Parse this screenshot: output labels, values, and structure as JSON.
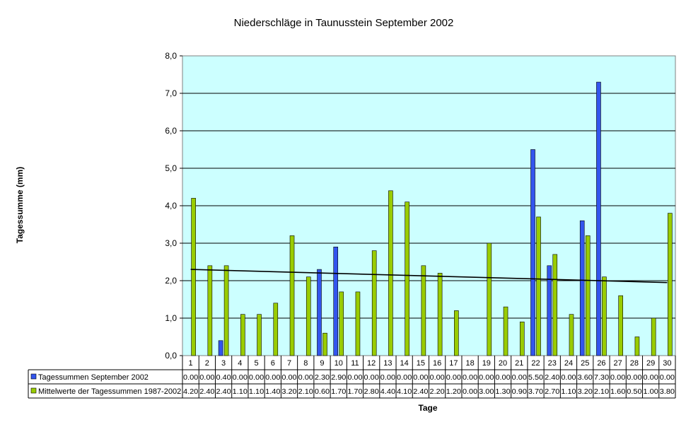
{
  "chart_data": {
    "type": "bar",
    "title": "Niederschläge in Taunusstein September 2002",
    "xlabel": "Tage",
    "ylabel": "Tagessumme (mm)",
    "ylim": [
      0,
      8
    ],
    "yticks": [
      "0,0",
      "1,0",
      "2,0",
      "3,0",
      "4,0",
      "5,0",
      "6,0",
      "7,0",
      "8,0"
    ],
    "grid": true,
    "legend": "data-table-below",
    "categories": [
      "1",
      "2",
      "3",
      "4",
      "5",
      "6",
      "7",
      "8",
      "9",
      "10",
      "11",
      "12",
      "13",
      "14",
      "15",
      "16",
      "17",
      "18",
      "19",
      "20",
      "21",
      "22",
      "23",
      "24",
      "25",
      "26",
      "27",
      "28",
      "29",
      "30"
    ],
    "series": [
      {
        "name": "Tagessummen September 2002",
        "color": "#3355ee",
        "values": [
          0.0,
          0.0,
          0.4,
          0.0,
          0.0,
          0.0,
          0.0,
          0.0,
          2.3,
          2.9,
          0.0,
          0.0,
          0.0,
          0.0,
          0.0,
          0.0,
          0.0,
          0.0,
          0.0,
          0.0,
          0.0,
          5.5,
          2.4,
          0.0,
          3.6,
          7.3,
          0.0,
          0.0,
          0.0,
          0.0
        ],
        "labels": [
          "0.00",
          "0.00",
          "0.40",
          "0.00",
          "0.00",
          "0.00",
          "0.00",
          "0.00",
          "2.30",
          "2.90",
          "0.00",
          "0.00",
          "0.00",
          "0.00",
          "0.00",
          "0.00",
          "0.00",
          "0.00",
          "0.00",
          "0.00",
          "0.00",
          "5.50",
          "2.40",
          "0.00",
          "3.60",
          "7.30",
          "0.00",
          "0.00",
          "0.00",
          "0.00"
        ]
      },
      {
        "name": "Mittelwerte der Tagessummen 1987-2002",
        "color": "#99cc00",
        "values": [
          4.2,
          2.4,
          2.4,
          1.1,
          1.1,
          1.4,
          3.2,
          2.1,
          0.6,
          1.7,
          1.7,
          2.8,
          4.4,
          4.1,
          2.4,
          2.2,
          1.2,
          0.0,
          3.0,
          1.3,
          0.9,
          3.7,
          2.7,
          1.1,
          3.2,
          2.1,
          1.6,
          0.5,
          1.0,
          3.8
        ],
        "labels": [
          "4.20",
          "2.40",
          "2.40",
          "1.10",
          "1.10",
          "1.40",
          "3.20",
          "2.10",
          "0.60",
          "1.70",
          "1.70",
          "2.80",
          "4.40",
          "4.10",
          "2.40",
          "2.20",
          "1.20",
          "0.00",
          "3.00",
          "1.30",
          "0.90",
          "3.70",
          "2.70",
          "1.10",
          "3.20",
          "2.10",
          "1.60",
          "0.50",
          "1.00",
          "3.80"
        ]
      }
    ],
    "trendline": {
      "type": "linear",
      "start": 2.3,
      "end": 1.95,
      "color": "#000000"
    },
    "plot_background": "#ccffff"
  }
}
